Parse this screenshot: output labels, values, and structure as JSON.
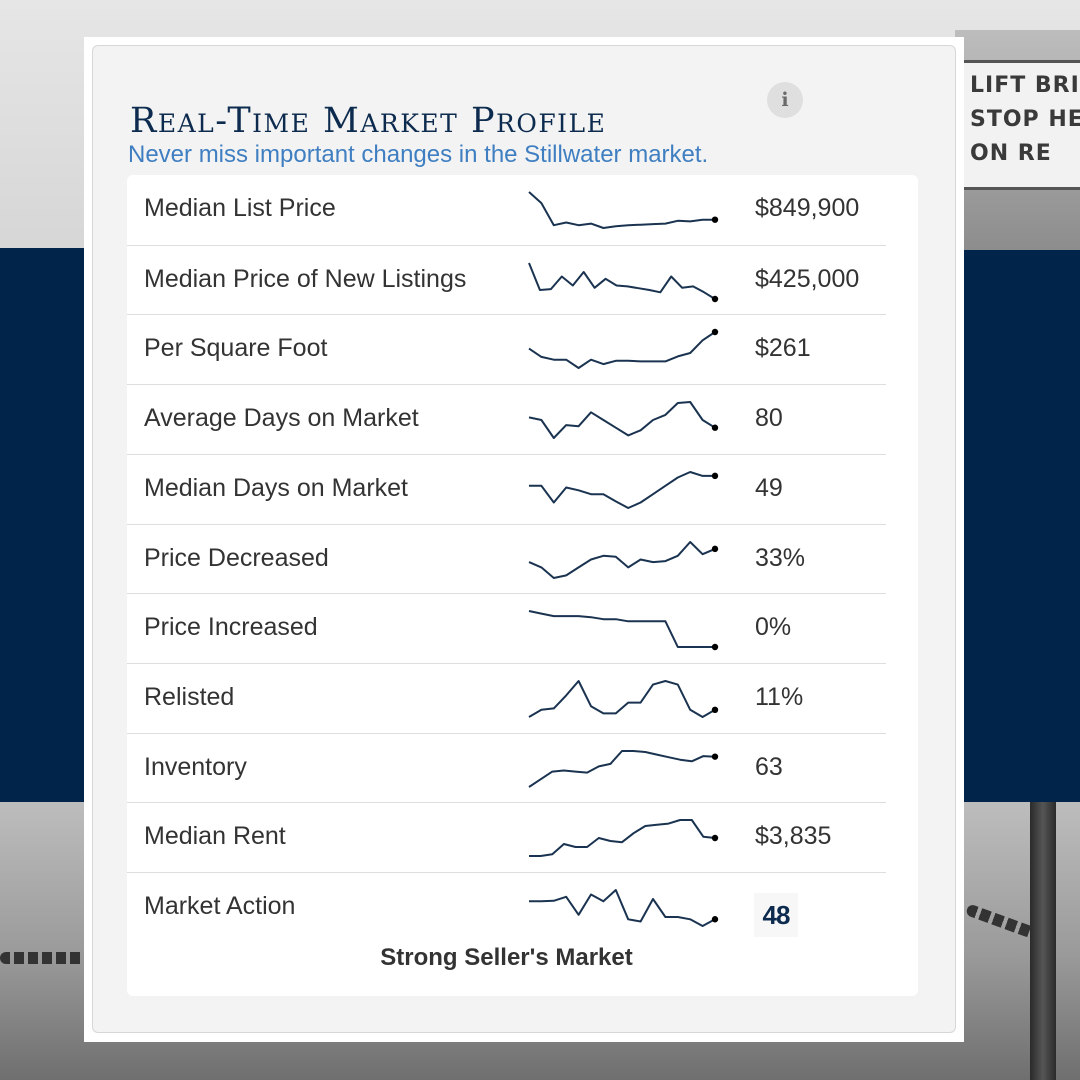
{
  "header": {
    "title": "Real-Time Market Profile",
    "info_icon": "i",
    "subtitle": "Never miss important changes in the Stillwater market."
  },
  "metrics": [
    {
      "label": "Median List Price",
      "value": "$849,900",
      "trend": [
        9,
        7,
        3,
        3.5,
        3,
        3.3,
        2.5,
        2.8,
        3,
        3.1,
        3.2,
        3.3,
        3.8,
        3.7,
        4,
        4
      ]
    },
    {
      "label": "Median Price of New Listings",
      "value": "$425,000",
      "trend": [
        8,
        2,
        2.2,
        5,
        3,
        6,
        2.5,
        4.5,
        3,
        2.8,
        2.4,
        2,
        1.5,
        5,
        2.5,
        2.8,
        1.5,
        0
      ]
    },
    {
      "label": "Per Square Foot",
      "value": "$261",
      "trend": [
        5,
        3.5,
        3,
        3,
        1.5,
        3,
        2.2,
        2.8,
        2.8,
        2.7,
        2.7,
        2.7,
        3.6,
        4.2,
        6.5,
        8
      ]
    },
    {
      "label": "Average Days on Market",
      "value": "80",
      "trend": [
        4,
        3.5,
        0,
        2.5,
        2.3,
        5,
        3.5,
        2,
        0.5,
        1.5,
        3.5,
        4.5,
        6.8,
        7,
        3.5,
        2
      ]
    },
    {
      "label": "Median Days on Market",
      "value": "49",
      "trend": [
        4,
        4,
        1,
        3.7,
        3.2,
        2.5,
        2.5,
        1.2,
        0,
        1,
        2.5,
        4,
        5.5,
        6.5,
        5.8,
        5.8
      ]
    },
    {
      "label": "Price Decreased",
      "value": "33%",
      "trend": [
        3,
        2,
        0,
        0.5,
        2,
        3.5,
        4.2,
        4,
        2,
        3.5,
        3,
        3.2,
        4.2,
        6.8,
        4.5,
        5.5
      ]
    },
    {
      "label": "Price Increased",
      "value": "0%",
      "trend": [
        7,
        6.5,
        6,
        6,
        6,
        5.8,
        5.4,
        5.4,
        5,
        5,
        5,
        5,
        0,
        0,
        0,
        0
      ]
    },
    {
      "label": "Relisted",
      "value": "11%",
      "trend": [
        0,
        1,
        1.2,
        3,
        5,
        1.5,
        0.5,
        0.5,
        2,
        2,
        4.5,
        5,
        4.5,
        1,
        0,
        1
      ]
    },
    {
      "label": "Inventory",
      "value": "63",
      "trend": [
        0,
        1.5,
        3,
        3.2,
        3,
        2.8,
        4,
        4.5,
        7,
        7,
        6.8,
        6.3,
        5.8,
        5.3,
        5,
        6,
        5.9
      ]
    },
    {
      "label": "Median Rent",
      "value": "$3,835",
      "trend": [
        0,
        0,
        0.3,
        2,
        1.5,
        1.5,
        3,
        2.5,
        2.3,
        3.8,
        5,
        5.2,
        5.4,
        6,
        6,
        3.2,
        3
      ]
    },
    {
      "label": "Market Action",
      "value": "48",
      "trend": [
        5.5,
        5.5,
        5.6,
        6.5,
        2.5,
        7,
        5.5,
        8,
        1.5,
        1,
        6,
        2,
        2,
        1.5,
        0,
        1.5
      ]
    }
  ],
  "market_action": {
    "score": "48",
    "verdict": "Strong Seller's Market"
  },
  "colors": {
    "navy": "#0d2b4e",
    "link_blue": "#3f7fc1",
    "spark": "#1a3350",
    "band": "#00244a"
  },
  "background": {
    "sign_text": "LIFT BRIDGE\nSTOP HERE\nON RED"
  }
}
